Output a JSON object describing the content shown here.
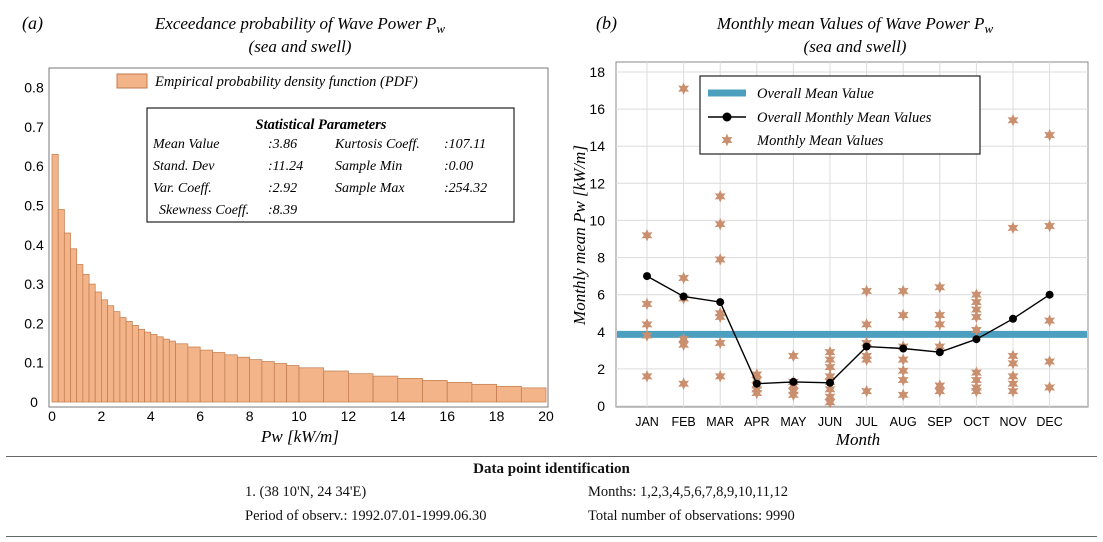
{
  "chart_data": [
    {
      "type": "bar",
      "panel_label": "(a)",
      "title": "Exceedance probability of Wave Power P",
      "title_subscript": "w",
      "subtitle": "(sea and swell)",
      "xlabel": "Pw [kW/m]",
      "ylabel": "",
      "xlim": [
        0,
        20
      ],
      "ylim": [
        0,
        0.85
      ],
      "xticks": [
        "0",
        "2",
        "4",
        "6",
        "8",
        "10",
        "12",
        "14",
        "16",
        "18",
        "20"
      ],
      "yticks": [
        "0",
        "0.1",
        "0.2",
        "0.3",
        "0.4",
        "0.5",
        "0.6",
        "0.7",
        "0.8"
      ],
      "bar_color": "#f2b488",
      "legend": "Empirical probability density function (PDF)",
      "bins": [
        {
          "x0": 0.0,
          "x1": 0.25,
          "value": 0.63
        },
        {
          "x0": 0.25,
          "x1": 0.5,
          "value": 0.49
        },
        {
          "x0": 0.5,
          "x1": 0.75,
          "value": 0.43
        },
        {
          "x0": 0.75,
          "x1": 1.0,
          "value": 0.39
        },
        {
          "x0": 1.0,
          "x1": 1.25,
          "value": 0.35
        },
        {
          "x0": 1.25,
          "x1": 1.5,
          "value": 0.325
        },
        {
          "x0": 1.5,
          "x1": 1.75,
          "value": 0.3
        },
        {
          "x0": 1.75,
          "x1": 2.0,
          "value": 0.28
        },
        {
          "x0": 2.0,
          "x1": 2.25,
          "value": 0.26
        },
        {
          "x0": 2.25,
          "x1": 2.5,
          "value": 0.245
        },
        {
          "x0": 2.5,
          "x1": 2.75,
          "value": 0.23
        },
        {
          "x0": 2.75,
          "x1": 3.0,
          "value": 0.215
        },
        {
          "x0": 3.0,
          "x1": 3.25,
          "value": 0.205
        },
        {
          "x0": 3.25,
          "x1": 3.5,
          "value": 0.195
        },
        {
          "x0": 3.5,
          "x1": 3.75,
          "value": 0.185
        },
        {
          "x0": 3.75,
          "x1": 4.0,
          "value": 0.178
        },
        {
          "x0": 4.0,
          "x1": 4.25,
          "value": 0.172
        },
        {
          "x0": 4.25,
          "x1": 4.5,
          "value": 0.166
        },
        {
          "x0": 4.5,
          "x1": 4.75,
          "value": 0.16
        },
        {
          "x0": 4.75,
          "x1": 5.0,
          "value": 0.155
        },
        {
          "x0": 5.0,
          "x1": 5.5,
          "value": 0.148
        },
        {
          "x0": 5.5,
          "x1": 6.0,
          "value": 0.14
        },
        {
          "x0": 6.0,
          "x1": 6.5,
          "value": 0.132
        },
        {
          "x0": 6.5,
          "x1": 7.0,
          "value": 0.126
        },
        {
          "x0": 7.0,
          "x1": 7.5,
          "value": 0.12
        },
        {
          "x0": 7.5,
          "x1": 8.0,
          "value": 0.114
        },
        {
          "x0": 8.0,
          "x1": 8.5,
          "value": 0.108
        },
        {
          "x0": 8.5,
          "x1": 9.0,
          "value": 0.103
        },
        {
          "x0": 9.0,
          "x1": 9.5,
          "value": 0.098
        },
        {
          "x0": 9.5,
          "x1": 10.0,
          "value": 0.093
        },
        {
          "x0": 10.0,
          "x1": 11.0,
          "value": 0.087
        },
        {
          "x0": 11.0,
          "x1": 12.0,
          "value": 0.079
        },
        {
          "x0": 12.0,
          "x1": 13.0,
          "value": 0.072
        },
        {
          "x0": 13.0,
          "x1": 14.0,
          "value": 0.066
        },
        {
          "x0": 14.0,
          "x1": 15.0,
          "value": 0.06
        },
        {
          "x0": 15.0,
          "x1": 16.0,
          "value": 0.055
        },
        {
          "x0": 16.0,
          "x1": 17.0,
          "value": 0.05
        },
        {
          "x0": 17.0,
          "x1": 18.0,
          "value": 0.045
        },
        {
          "x0": 18.0,
          "x1": 19.0,
          "value": 0.04
        },
        {
          "x0": 19.0,
          "x1": 20.0,
          "value": 0.036
        }
      ],
      "stats_box": {
        "title": "Statistical Parameters",
        "rows": [
          {
            "l1": "Mean Value",
            "v1": ":3.86",
            "l2": "Kurtosis Coeff.",
            "v2": ":107.11"
          },
          {
            "l1": "Stand. Dev",
            "v1": ":11.24",
            "l2": "Sample Min",
            "v2": ":0.00"
          },
          {
            "l1": "Var. Coeff.",
            "v1": ":2.92",
            "l2": "Sample Max",
            "v2": ":254.32"
          },
          {
            "l1": "Skewness Coeff.",
            "v1": ":8.39",
            "l2": "",
            "v2": ""
          }
        ]
      }
    },
    {
      "type": "line+scatter",
      "panel_label": "(b)",
      "title": "Monthly mean Values of Wave Power P",
      "title_subscript": "w",
      "subtitle": "(sea and swell)",
      "xlabel": "Month",
      "ylabel": "Monthly mean Pw [kW/m]",
      "ylim": [
        0,
        18
      ],
      "grid": true,
      "categories": [
        "JAN",
        "FEB",
        "MAR",
        "APR",
        "MAY",
        "JUN",
        "JUL",
        "AUG",
        "SEP",
        "OCT",
        "NOV",
        "DEC"
      ],
      "yticks": [
        "0",
        "2",
        "4",
        "6",
        "8",
        "10",
        "12",
        "14",
        "16",
        "18"
      ],
      "overall_mean": 3.86,
      "overall_mean_color": "#4d9fbf",
      "star_color": "#c98f6e",
      "legend": [
        "Overall Mean Value",
        "Overall Monthly Mean Values",
        "Monthly Mean Values"
      ],
      "series": [
        {
          "name": "Overall Monthly Mean Values",
          "values": [
            7.0,
            5.9,
            5.6,
            1.2,
            1.3,
            1.25,
            3.2,
            3.1,
            2.9,
            3.6,
            4.7,
            6.0
          ]
        },
        {
          "name": "Monthly Mean Values",
          "points": [
            [
              1,
              9.2
            ],
            [
              1,
              5.5
            ],
            [
              1,
              4.4
            ],
            [
              1,
              3.8
            ],
            [
              1,
              1.6
            ],
            [
              2,
              17.1
            ],
            [
              2,
              6.9
            ],
            [
              2,
              5.8
            ],
            [
              2,
              3.6
            ],
            [
              2,
              3.3
            ],
            [
              2,
              1.2
            ],
            [
              3,
              11.3
            ],
            [
              3,
              9.8
            ],
            [
              3,
              7.9
            ],
            [
              3,
              5.0
            ],
            [
              3,
              4.8
            ],
            [
              3,
              3.4
            ],
            [
              3,
              1.6
            ],
            [
              4,
              1.7
            ],
            [
              4,
              1.4
            ],
            [
              4,
              1.1
            ],
            [
              4,
              0.9
            ],
            [
              4,
              0.7
            ],
            [
              5,
              2.7
            ],
            [
              5,
              1.3
            ],
            [
              5,
              1.1
            ],
            [
              5,
              0.8
            ],
            [
              5,
              0.6
            ],
            [
              6,
              2.9
            ],
            [
              6,
              2.5
            ],
            [
              6,
              2.1
            ],
            [
              6,
              1.6
            ],
            [
              6,
              1.3
            ],
            [
              6,
              0.9
            ],
            [
              6,
              0.5
            ],
            [
              6,
              0.2
            ],
            [
              7,
              6.2
            ],
            [
              7,
              4.4
            ],
            [
              7,
              3.4
            ],
            [
              7,
              2.7
            ],
            [
              7,
              2.5
            ],
            [
              7,
              0.8
            ],
            [
              8,
              6.2
            ],
            [
              8,
              4.9
            ],
            [
              8,
              3.2
            ],
            [
              8,
              2.5
            ],
            [
              8,
              1.9
            ],
            [
              8,
              1.4
            ],
            [
              8,
              0.6
            ],
            [
              9,
              6.4
            ],
            [
              9,
              4.9
            ],
            [
              9,
              4.4
            ],
            [
              9,
              3.2
            ],
            [
              9,
              1.1
            ],
            [
              9,
              0.8
            ],
            [
              10,
              6.0
            ],
            [
              10,
              5.6
            ],
            [
              10,
              5.2
            ],
            [
              10,
              4.8
            ],
            [
              10,
              4.1
            ],
            [
              10,
              1.8
            ],
            [
              10,
              1.4
            ],
            [
              10,
              1.0
            ],
            [
              10,
              0.8
            ],
            [
              11,
              15.4
            ],
            [
              11,
              9.6
            ],
            [
              11,
              2.7
            ],
            [
              11,
              2.3
            ],
            [
              11,
              1.6
            ],
            [
              11,
              1.2
            ],
            [
              11,
              0.8
            ],
            [
              12,
              14.6
            ],
            [
              12,
              9.7
            ],
            [
              12,
              4.6
            ],
            [
              12,
              2.4
            ],
            [
              12,
              1.0
            ]
          ]
        }
      ]
    }
  ],
  "identification": {
    "title": "Data point identification",
    "location": "1. (38  10'N, 24  34'E)",
    "months": "Months: 1,2,3,4,5,6,7,8,9,10,11,12",
    "period": "Period of observ.: 1992.07.01-1999.06.30",
    "observations": "Total number of observations: 9990"
  }
}
